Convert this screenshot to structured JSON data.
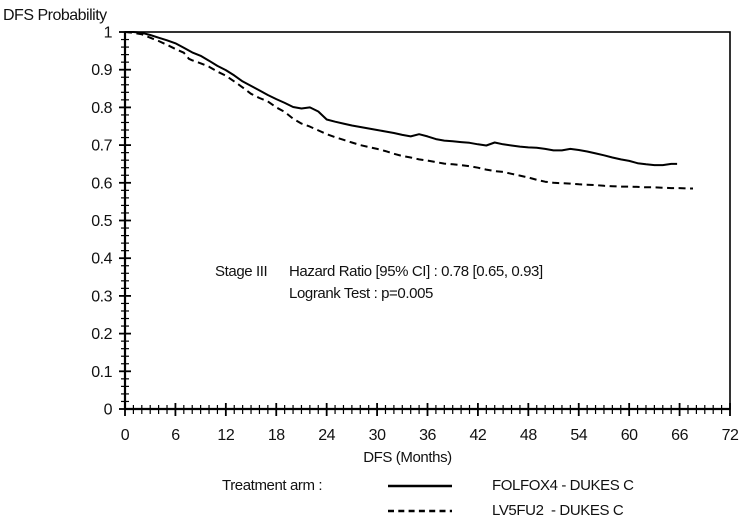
{
  "title": "DFS Probability",
  "x_axis_title": "DFS (Months)",
  "annotation": {
    "stage": "Stage III",
    "hazard_ratio": "Hazard Ratio [95% CI] : 0.78 [0.65, 0.93]",
    "logrank": "Logrank Test : p=0.005"
  },
  "legend": {
    "title": "Treatment arm :",
    "items": [
      {
        "label": "FOLFOX4 - DUKES C",
        "style": "solid"
      },
      {
        "label": "LV5FU2  - DUKES C",
        "style": "dashed"
      }
    ]
  },
  "colors": {
    "line": "#000000",
    "text": "#111111",
    "background": "#ffffff"
  },
  "chart_data": {
    "type": "line",
    "subtype": "kaplan-meier-survival",
    "title": "DFS Probability",
    "xlabel": "DFS (Months)",
    "ylabel": "DFS Probability",
    "xlim": [
      0,
      72
    ],
    "ylim": [
      0,
      1
    ],
    "grid": false,
    "legend_position": "bottom",
    "x_ticks_major": [
      0,
      6,
      12,
      18,
      24,
      30,
      36,
      42,
      48,
      54,
      60,
      66,
      72
    ],
    "x_minor_step": 1,
    "y_ticks_major": [
      {
        "v": 1.0,
        "label": "1"
      },
      {
        "v": 0.9,
        "label": "0.9"
      },
      {
        "v": 0.8,
        "label": "0.8"
      },
      {
        "v": 0.7,
        "label": "0.7"
      },
      {
        "v": 0.6,
        "label": "0.6"
      },
      {
        "v": 0.5,
        "label": "0.5"
      },
      {
        "v": 0.4,
        "label": "0.4"
      },
      {
        "v": 0.3,
        "label": "0.3"
      },
      {
        "v": 0.2,
        "label": "0.2"
      },
      {
        "v": 0.1,
        "label": "0.1"
      },
      {
        "v": 0.0,
        "label": "0"
      }
    ],
    "y_minor_step": 0.02,
    "series": [
      {
        "name": "FOLFOX4 - DUKES C",
        "style": "solid",
        "points": [
          [
            0,
            1.0
          ],
          [
            1,
            1.0
          ],
          [
            2,
            0.998
          ],
          [
            3,
            0.992
          ],
          [
            4,
            0.985
          ],
          [
            5,
            0.978
          ],
          [
            6,
            0.97
          ],
          [
            7,
            0.958
          ],
          [
            8,
            0.946
          ],
          [
            9,
            0.937
          ],
          [
            10,
            0.924
          ],
          [
            11,
            0.91
          ],
          [
            12,
            0.899
          ],
          [
            13,
            0.885
          ],
          [
            14,
            0.869
          ],
          [
            15,
            0.857
          ],
          [
            16,
            0.845
          ],
          [
            17,
            0.833
          ],
          [
            18,
            0.822
          ],
          [
            19,
            0.812
          ],
          [
            20,
            0.801
          ],
          [
            21,
            0.797
          ],
          [
            22,
            0.8
          ],
          [
            23,
            0.789
          ],
          [
            24,
            0.768
          ],
          [
            25,
            0.762
          ],
          [
            26,
            0.757
          ],
          [
            27,
            0.752
          ],
          [
            28,
            0.748
          ],
          [
            29,
            0.744
          ],
          [
            30,
            0.74
          ],
          [
            31,
            0.736
          ],
          [
            32,
            0.732
          ],
          [
            33,
            0.727
          ],
          [
            34,
            0.723
          ],
          [
            35,
            0.729
          ],
          [
            36,
            0.723
          ],
          [
            37,
            0.716
          ],
          [
            38,
            0.712
          ],
          [
            39,
            0.71
          ],
          [
            40,
            0.708
          ],
          [
            41,
            0.706
          ],
          [
            42,
            0.702
          ],
          [
            43,
            0.699
          ],
          [
            44,
            0.707
          ],
          [
            45,
            0.702
          ],
          [
            46,
            0.699
          ],
          [
            47,
            0.696
          ],
          [
            48,
            0.694
          ],
          [
            49,
            0.693
          ],
          [
            50,
            0.69
          ],
          [
            51,
            0.686
          ],
          [
            52,
            0.686
          ],
          [
            53,
            0.69
          ],
          [
            54,
            0.687
          ],
          [
            55,
            0.683
          ],
          [
            56,
            0.678
          ],
          [
            57,
            0.673
          ],
          [
            58,
            0.667
          ],
          [
            59,
            0.662
          ],
          [
            60,
            0.658
          ],
          [
            61,
            0.652
          ],
          [
            62,
            0.649
          ],
          [
            63,
            0.647
          ],
          [
            64,
            0.647
          ],
          [
            65,
            0.65
          ],
          [
            65.7,
            0.65
          ]
        ]
      },
      {
        "name": "LV5FU2  - DUKES C",
        "style": "dashed",
        "points": [
          [
            0,
            1.0
          ],
          [
            1,
            0.998
          ],
          [
            2,
            0.994
          ],
          [
            3,
            0.985
          ],
          [
            4,
            0.976
          ],
          [
            5,
            0.966
          ],
          [
            6,
            0.955
          ],
          [
            7,
            0.945
          ],
          [
            7.6,
            0.929
          ],
          [
            8,
            0.925
          ],
          [
            9,
            0.917
          ],
          [
            10,
            0.908
          ],
          [
            11,
            0.895
          ],
          [
            12,
            0.884
          ],
          [
            13,
            0.869
          ],
          [
            14,
            0.853
          ],
          [
            15,
            0.836
          ],
          [
            16,
            0.825
          ],
          [
            17,
            0.816
          ],
          [
            18,
            0.8
          ],
          [
            19,
            0.788
          ],
          [
            20,
            0.77
          ],
          [
            21,
            0.757
          ],
          [
            22,
            0.749
          ],
          [
            23,
            0.739
          ],
          [
            24,
            0.729
          ],
          [
            25,
            0.721
          ],
          [
            26,
            0.714
          ],
          [
            27,
            0.707
          ],
          [
            28,
            0.7
          ],
          [
            29,
            0.695
          ],
          [
            30,
            0.69
          ],
          [
            31,
            0.684
          ],
          [
            32,
            0.677
          ],
          [
            33,
            0.671
          ],
          [
            34,
            0.667
          ],
          [
            35,
            0.662
          ],
          [
            36,
            0.659
          ],
          [
            37,
            0.655
          ],
          [
            38,
            0.651
          ],
          [
            39,
            0.649
          ],
          [
            40,
            0.647
          ],
          [
            41,
            0.644
          ],
          [
            42,
            0.64
          ],
          [
            43,
            0.635
          ],
          [
            44,
            0.631
          ],
          [
            45,
            0.629
          ],
          [
            46,
            0.624
          ],
          [
            47,
            0.619
          ],
          [
            48,
            0.614
          ],
          [
            49,
            0.608
          ],
          [
            50,
            0.603
          ],
          [
            51,
            0.6
          ],
          [
            52,
            0.599
          ],
          [
            53,
            0.598
          ],
          [
            54,
            0.596
          ],
          [
            55,
            0.595
          ],
          [
            56,
            0.594
          ],
          [
            57,
            0.592
          ],
          [
            58,
            0.591
          ],
          [
            59,
            0.59
          ],
          [
            60,
            0.59
          ],
          [
            61,
            0.589
          ],
          [
            62,
            0.588
          ],
          [
            63,
            0.588
          ],
          [
            64,
            0.587
          ],
          [
            65,
            0.586
          ],
          [
            66,
            0.586
          ],
          [
            67,
            0.585
          ],
          [
            67.6,
            0.585
          ]
        ]
      }
    ],
    "annotations": [
      "Stage III",
      "Hazard Ratio [95% CI] : 0.78 [0.65, 0.93]",
      "Logrank Test : p=0.005"
    ]
  }
}
